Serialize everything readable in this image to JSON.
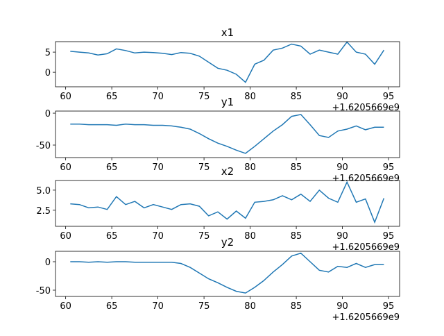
{
  "chart_data": [
    {
      "type": "line",
      "title": "x1",
      "x_offset_label": "+1.6205669e9",
      "x": [
        60.5,
        61.5,
        62.5,
        63.5,
        64.5,
        65.5,
        66.5,
        67.5,
        68.5,
        69.5,
        70.5,
        71.5,
        72.5,
        73.5,
        74.5,
        75.5,
        76.5,
        77.5,
        78.5,
        79.5,
        80.5,
        81.5,
        82.5,
        83.5,
        84.5,
        85.5,
        86.5,
        87.5,
        88.5,
        89.5,
        90.5,
        91.5,
        92.5,
        93.5,
        94.5
      ],
      "series": [
        {
          "color": "#1f77b4",
          "values": [
            5.2,
            5.0,
            4.8,
            4.3,
            4.6,
            5.8,
            5.4,
            4.8,
            5.0,
            4.9,
            4.7,
            4.4,
            4.9,
            4.7,
            4.0,
            2.5,
            1.0,
            0.5,
            -0.5,
            -2.5,
            2.0,
            3.0,
            5.5,
            6.0,
            7.0,
            6.5,
            4.5,
            5.5,
            5.0,
            4.5,
            7.5,
            5.0,
            4.5,
            2.0,
            5.5
          ]
        }
      ],
      "xlim": [
        58.9,
        96.2
      ],
      "xticks": [
        60,
        65,
        70,
        75,
        80,
        85,
        90,
        95
      ],
      "ylim": [
        -3.6,
        7.6
      ],
      "yticks": [
        0,
        5
      ]
    },
    {
      "type": "line",
      "title": "y1",
      "x_offset_label": "+1.6205669e9",
      "x": [
        60.5,
        61.5,
        62.5,
        63.5,
        64.5,
        65.5,
        66.5,
        67.5,
        68.5,
        69.5,
        70.5,
        71.5,
        72.5,
        73.5,
        74.5,
        75.5,
        76.5,
        77.5,
        78.5,
        79.5,
        80.5,
        81.5,
        82.5,
        83.5,
        84.5,
        85.5,
        86.5,
        87.5,
        88.5,
        89.5,
        90.5,
        91.5,
        92.5,
        93.5,
        94.5
      ],
      "series": [
        {
          "color": "#1f77b4",
          "values": [
            -17,
            -17,
            -18,
            -18,
            -18,
            -19,
            -17,
            -18,
            -18,
            -19,
            -19,
            -20,
            -22,
            -25,
            -32,
            -40,
            -47,
            -52,
            -58,
            -63,
            -52,
            -40,
            -28,
            -18,
            -5,
            -2,
            -18,
            -35,
            -38,
            -28,
            -25,
            -20,
            -26,
            -22,
            -22
          ]
        }
      ],
      "xlim": [
        58.9,
        96.2
      ],
      "xticks": [
        60,
        65,
        70,
        75,
        80,
        85,
        90,
        95
      ],
      "ylim": [
        -69.6,
        3.3
      ],
      "yticks": [
        -50,
        0
      ]
    },
    {
      "type": "line",
      "title": "x2",
      "x_offset_label": "+1.6205669e9",
      "x": [
        60.5,
        61.5,
        62.5,
        63.5,
        64.5,
        65.5,
        66.5,
        67.5,
        68.5,
        69.5,
        70.5,
        71.5,
        72.5,
        73.5,
        74.5,
        75.5,
        76.5,
        77.5,
        78.5,
        79.5,
        80.5,
        81.5,
        82.5,
        83.5,
        84.5,
        85.5,
        86.5,
        87.5,
        88.5,
        89.5,
        90.5,
        91.5,
        92.5,
        93.5,
        94.5
      ],
      "series": [
        {
          "color": "#1f77b4",
          "values": [
            3.3,
            3.2,
            2.8,
            2.9,
            2.6,
            4.2,
            3.2,
            3.6,
            2.8,
            3.2,
            2.9,
            2.6,
            3.2,
            3.3,
            3.0,
            1.8,
            2.3,
            1.4,
            2.4,
            1.5,
            3.5,
            3.6,
            3.8,
            4.3,
            3.8,
            4.5,
            3.6,
            5.0,
            4.0,
            3.5,
            6.0,
            3.5,
            3.9,
            1.0,
            4.0
          ]
        }
      ],
      "xlim": [
        58.9,
        96.2
      ],
      "xticks": [
        60,
        65,
        70,
        75,
        80,
        85,
        90,
        95
      ],
      "ylim": [
        0.5,
        6.2
      ],
      "yticks": [
        2.5,
        {
          "value": 5,
          "label": "5.0"
        }
      ]
    },
    {
      "type": "line",
      "title": "y2",
      "x_offset_label": "+1.6205669e9",
      "x": [
        60.5,
        61.5,
        62.5,
        63.5,
        64.5,
        65.5,
        66.5,
        67.5,
        68.5,
        69.5,
        70.5,
        71.5,
        72.5,
        73.5,
        74.5,
        75.5,
        76.5,
        77.5,
        78.5,
        79.5,
        80.5,
        81.5,
        82.5,
        83.5,
        84.5,
        85.5,
        86.5,
        87.5,
        88.5,
        89.5,
        90.5,
        91.5,
        92.5,
        93.5,
        94.5
      ],
      "series": [
        {
          "color": "#1f77b4",
          "values": [
            0,
            0,
            -1,
            0,
            -1,
            0,
            0,
            -1,
            -1,
            -1,
            -1,
            -1,
            -3,
            -10,
            -20,
            -30,
            -37,
            -45,
            -52,
            -55,
            -45,
            -33,
            -18,
            -5,
            10,
            15,
            0,
            -15,
            -18,
            -8,
            -10,
            -3,
            -10,
            -5,
            -5
          ]
        }
      ],
      "xlim": [
        58.9,
        96.2
      ],
      "xticks": [
        60,
        65,
        70,
        75,
        80,
        85,
        90,
        95
      ],
      "ylim": [
        -61,
        18.3
      ],
      "yticks": [
        -50,
        0
      ]
    }
  ]
}
